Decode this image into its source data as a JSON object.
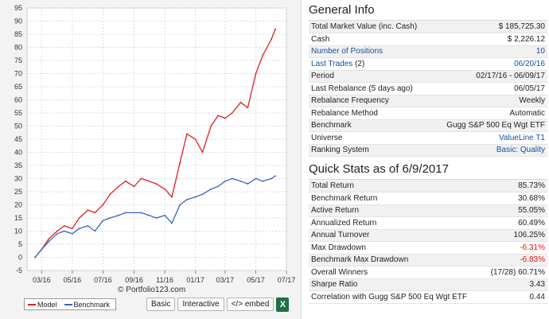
{
  "chart": {
    "watermark": "Portfolio123.com",
    "legend": [
      {
        "name": "Model",
        "color": "#e02020"
      },
      {
        "name": "Benchmark",
        "color": "#3a62c4"
      }
    ],
    "buttons": {
      "basic": "Basic",
      "interactive": "Interactive",
      "embed": "</> embed",
      "excel_icon": "excel-icon",
      "excel_glyph": "X"
    }
  },
  "chart_data": {
    "type": "line",
    "title": "",
    "xlabel": "",
    "ylabel": "",
    "ylim": [
      -5,
      95
    ],
    "y_ticks": [
      -5,
      0,
      5,
      10,
      15,
      20,
      25,
      30,
      35,
      40,
      45,
      50,
      55,
      60,
      65,
      70,
      75,
      80,
      85,
      90,
      95
    ],
    "x_ticks": [
      "03/16",
      "05/16",
      "07/16",
      "09/16",
      "11/16",
      "01/17",
      "03/17",
      "05/17",
      "07/17"
    ],
    "x_range": [
      "2016-02",
      "2017-07"
    ],
    "grid": true,
    "series": [
      {
        "name": "Model",
        "color": "#e02020",
        "x": [
          "2016-02-17",
          "2016-03-01",
          "2016-03-15",
          "2016-04-01",
          "2016-04-15",
          "2016-05-01",
          "2016-05-15",
          "2016-06-01",
          "2016-06-15",
          "2016-07-01",
          "2016-07-15",
          "2016-08-01",
          "2016-08-15",
          "2016-09-01",
          "2016-09-15",
          "2016-10-01",
          "2016-10-15",
          "2016-11-01",
          "2016-11-15",
          "2016-12-01",
          "2016-12-15",
          "2017-01-01",
          "2017-01-15",
          "2017-02-01",
          "2017-02-15",
          "2017-03-01",
          "2017-03-15",
          "2017-04-01",
          "2017-04-15",
          "2017-05-01",
          "2017-05-15",
          "2017-06-01",
          "2017-06-09"
        ],
        "y": [
          0,
          3,
          7,
          10,
          12,
          11,
          15,
          18,
          17,
          20,
          24,
          27,
          29,
          27,
          30,
          29,
          28,
          26,
          23,
          36,
          47,
          45,
          40,
          50,
          54,
          53,
          55,
          59,
          57,
          70,
          77,
          83,
          87
        ]
      },
      {
        "name": "Benchmark",
        "color": "#3a62c4",
        "x": [
          "2016-02-17",
          "2016-03-01",
          "2016-03-15",
          "2016-04-01",
          "2016-04-15",
          "2016-05-01",
          "2016-05-15",
          "2016-06-01",
          "2016-06-15",
          "2016-07-01",
          "2016-07-15",
          "2016-08-01",
          "2016-08-15",
          "2016-09-01",
          "2016-09-15",
          "2016-10-01",
          "2016-10-15",
          "2016-11-01",
          "2016-11-15",
          "2016-12-01",
          "2016-12-15",
          "2017-01-01",
          "2017-01-15",
          "2017-02-01",
          "2017-02-15",
          "2017-03-01",
          "2017-03-15",
          "2017-04-01",
          "2017-04-15",
          "2017-05-01",
          "2017-05-15",
          "2017-06-01",
          "2017-06-09"
        ],
        "y": [
          0,
          3,
          6,
          9,
          10,
          9,
          11,
          12,
          10,
          14,
          15,
          16,
          17,
          17,
          17,
          16,
          15,
          16,
          13,
          20,
          22,
          23,
          24,
          26,
          27,
          29,
          30,
          29,
          28,
          30,
          29,
          30,
          31
        ]
      }
    ]
  },
  "general_info": {
    "title": "General Info",
    "rows": [
      {
        "label": "Total Market Value (inc. Cash)",
        "value": "$ 185,725.30"
      },
      {
        "label": "Cash",
        "value": "$ 2,226.12"
      },
      {
        "label": "Number of Positions",
        "value": "10",
        "label_link": true,
        "value_link": true
      },
      {
        "label": "Last Trades",
        "label_suffix": "(2)",
        "value": "06/20/16",
        "label_link": true,
        "value_link": true
      },
      {
        "label": "Period",
        "value": "02/17/16 - 06/09/17"
      },
      {
        "label": "Last Rebalance (5 days ago)",
        "value": "06/05/17"
      },
      {
        "label": "Rebalance Frequency",
        "value": "Weekly"
      },
      {
        "label": "Rebalance Method",
        "value": "Automatic"
      },
      {
        "label": "Benchmark",
        "value": "Gugg S&P 500 Eq Wgt ETF"
      },
      {
        "label": "Universe",
        "value": "ValueLine T1",
        "value_link": true
      },
      {
        "label": "Ranking System",
        "value": "Basic: Quality",
        "value_link": true
      }
    ]
  },
  "quick_stats": {
    "title": "Quick Stats as of 6/9/2017",
    "rows": [
      {
        "label": "Total Return",
        "value": "85.73%"
      },
      {
        "label": "Benchmark Return",
        "value": "30.68%"
      },
      {
        "label": "Active Return",
        "value": "55.05%"
      },
      {
        "label": "Annualized Return",
        "value": "60.49%"
      },
      {
        "label": "Annual Turnover",
        "value": "106.25%"
      },
      {
        "label": "Max Drawdown",
        "value": "-6.31%",
        "negative": true
      },
      {
        "label": "Benchmark Max Drawdown",
        "value": "-6.83%",
        "negative": true
      },
      {
        "label": "Overall Winners",
        "value": "(17/28) 60.71%"
      },
      {
        "label": "Sharpe Ratio",
        "value": "3.43"
      },
      {
        "label": "Correlation with Gugg S&P 500 Eq Wgt ETF",
        "value": "0.44"
      }
    ]
  }
}
